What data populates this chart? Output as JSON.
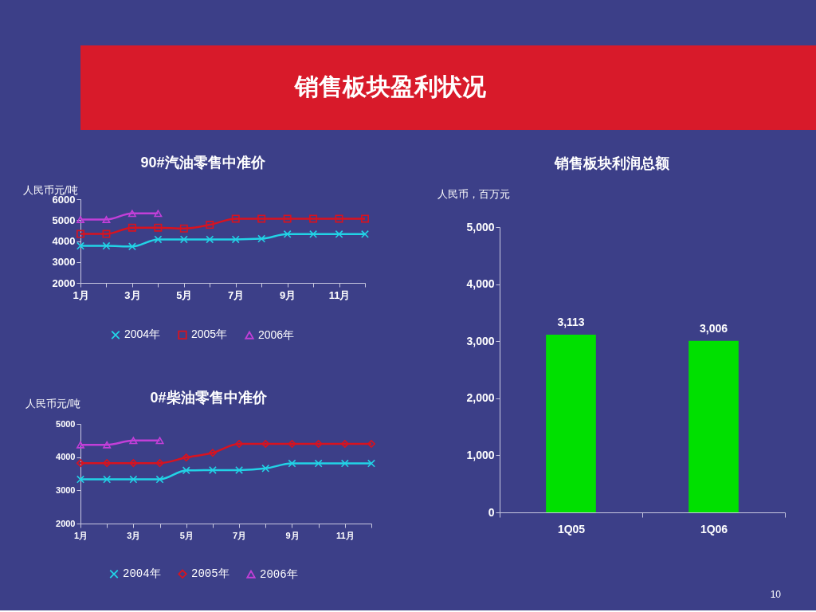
{
  "chart_data": [
    {
      "type": "other",
      "title": "销售板块盈利状况",
      "annotations": [
        "10"
      ]
    },
    {
      "type": "line",
      "title": "90#汽油零售中准价",
      "ylabel": "人民币元/吨",
      "categories": [
        "1月",
        null,
        "3月",
        null,
        "5月",
        null,
        "7月",
        null,
        "9月",
        null,
        "11月",
        null
      ],
      "series": [
        {
          "name": "2004年",
          "color": "#22d3e6",
          "marker": "cross",
          "values": [
            3770,
            3770,
            3740,
            4080,
            4080,
            4080,
            4080,
            4110,
            4330,
            4330,
            4330,
            4330
          ]
        },
        {
          "name": "2005年",
          "color": "#d8131f",
          "marker": "square",
          "values": [
            4340,
            4340,
            4640,
            4640,
            4600,
            4780,
            5070,
            5070,
            5070,
            5070,
            5070,
            5070
          ]
        },
        {
          "name": "2006年",
          "color": "#c23fd8",
          "marker": "triangle",
          "values": [
            5030,
            5030,
            5320,
            5320,
            null,
            null,
            null,
            null,
            null,
            null,
            null,
            null
          ]
        }
      ],
      "ylim": [
        2000,
        6000
      ],
      "yticks": [
        2000,
        3000,
        4000,
        5000,
        6000
      ],
      "legend": "bottom"
    },
    {
      "type": "line",
      "title": "0#柴油零售中准价",
      "ylabel": "人民币元/吨",
      "categories": [
        "1月",
        null,
        "3月",
        null,
        "5月",
        null,
        "7月",
        null,
        "9月",
        null,
        "11月",
        null
      ],
      "series": [
        {
          "name": "2004年",
          "color": "#22d3e6",
          "marker": "cross",
          "values": [
            3330,
            3330,
            3330,
            3330,
            3600,
            3610,
            3610,
            3660,
            3810,
            3810,
            3810,
            3810
          ]
        },
        {
          "name": "2005年",
          "color": "#d8131f",
          "marker": "diamond",
          "values": [
            3820,
            3820,
            3820,
            3820,
            3990,
            4130,
            4400,
            4400,
            4400,
            4400,
            4400,
            4400
          ]
        },
        {
          "name": "2006年",
          "color": "#c23fd8",
          "marker": "triangle",
          "values": [
            4370,
            4370,
            4500,
            4500,
            null,
            null,
            null,
            null,
            null,
            null,
            null,
            null
          ]
        }
      ],
      "ylim": [
        2000,
        5000
      ],
      "yticks": [
        2000,
        3000,
        4000,
        5000
      ],
      "legend": "bottom"
    },
    {
      "type": "bar",
      "title": "销售板块利润总额",
      "ylabel": "人民币，百万元",
      "categories": [
        "1Q05",
        "1Q06"
      ],
      "values": [
        3113,
        3006
      ],
      "color": "#00e000",
      "value_labels": [
        "3,113",
        "3,006"
      ],
      "ylim": [
        0,
        5000
      ],
      "yticks": [
        0,
        {
          "value": 1000,
          "label": "1,000"
        },
        {
          "value": 2000,
          "label": "2,000"
        },
        {
          "value": 3000,
          "label": "3,000"
        },
        {
          "value": 4000,
          "label": "4,000"
        },
        {
          "value": 5000,
          "label": "5,000"
        }
      ]
    }
  ]
}
